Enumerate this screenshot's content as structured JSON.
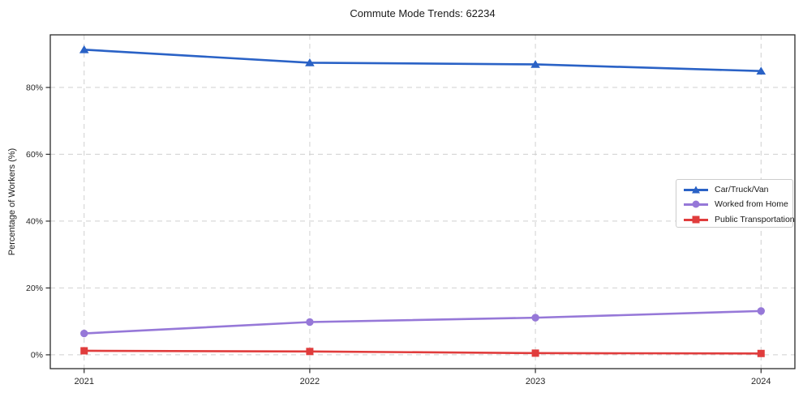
{
  "title": "Commute Mode Trends: 62234",
  "axes": {
    "ylabel": "Percentage of Workers (%)",
    "xlabel": ""
  },
  "chart_data": {
    "type": "line",
    "title": "Commute Mode Trends: 62234",
    "xlabel": "",
    "ylabel": "Percentage of Workers (%)",
    "categories": [
      2021,
      2022,
      2023,
      2024
    ],
    "series": [
      {
        "name": "Car/Truck/Van",
        "marker": "triangle",
        "color": "#2a62c6",
        "values": [
          91.3,
          87.4,
          86.9,
          84.9
        ]
      },
      {
        "name": "Worked from Home",
        "marker": "circle",
        "color": "#9678d8",
        "values": [
          6.4,
          9.8,
          11.1,
          13.1
        ]
      },
      {
        "name": "Public Transportation",
        "marker": "square",
        "color": "#e03c3c",
        "values": [
          1.2,
          1.0,
          0.5,
          0.4
        ]
      }
    ],
    "yticks": {
      "values": [
        0,
        20,
        40,
        60,
        80
      ],
      "labels": [
        "0%",
        "20%",
        "40%",
        "60%",
        "80%"
      ]
    },
    "xticks": {
      "values": [
        2021,
        2022,
        2023,
        2024
      ],
      "labels": [
        "2021",
        "2022",
        "2023",
        "2024"
      ]
    },
    "ylim": [
      -4.14,
      95.74
    ],
    "xlim": [
      2020.85,
      2024.15
    ],
    "grid": true,
    "grid_style": "dashed",
    "legend_position": "center-right"
  },
  "colors": {
    "background": "#ffffff",
    "grid": "#d0d0d0",
    "spine": "#2b2b2b",
    "tick_text": "#262626",
    "title_text": "#1a1a1a"
  }
}
